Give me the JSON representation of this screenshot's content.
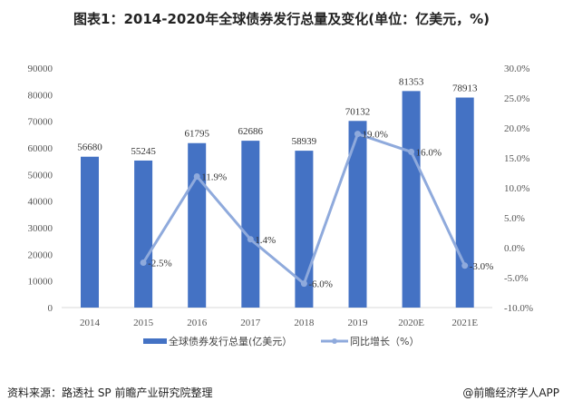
{
  "title": "图表1：2014-2020年全球债券发行总量及变化(单位：亿美元，%)",
  "source": "资料来源：路透社 SP 前瞻产业研究院整理",
  "credit": "@前瞻经济学人APP",
  "chart_data": {
    "type": "bar+line",
    "categories": [
      "2014",
      "2015",
      "2016",
      "2017",
      "2018",
      "2019",
      "2020E",
      "2021E"
    ],
    "series": [
      {
        "name": "全球债券发行总量(亿美元）",
        "type": "bar",
        "axis": "left",
        "color": "#4472C4",
        "values": [
          56680,
          55245,
          61795,
          62686,
          58939,
          70132,
          81353,
          78913
        ],
        "labels": [
          "56680",
          "55245",
          "61795",
          "62686",
          "58939",
          "70132",
          "81353",
          "78913"
        ]
      },
      {
        "name": "同比增长（%）",
        "type": "line",
        "axis": "right",
        "color": "#8FAADC",
        "values": [
          null,
          -2.5,
          11.9,
          1.4,
          -6.0,
          19.0,
          16.0,
          -3.0
        ],
        "labels": [
          "",
          "-2.5%",
          "11.9%",
          "1.4%",
          "-6.0%",
          "19.0%",
          "16.0%",
          "-3.0%"
        ]
      }
    ],
    "left_axis": {
      "ylim": [
        0,
        90000
      ],
      "ticks": [
        "0",
        "10000",
        "20000",
        "30000",
        "40000",
        "50000",
        "60000",
        "70000",
        "80000",
        "90000"
      ]
    },
    "right_axis": {
      "ylim": [
        -10,
        30
      ],
      "ticks": [
        "-10.0%",
        "-5.0%",
        "0.0%",
        "5.0%",
        "10.0%",
        "15.0%",
        "20.0%",
        "25.0%",
        "30.0%"
      ]
    },
    "legend_position": "bottom",
    "grid": false
  }
}
